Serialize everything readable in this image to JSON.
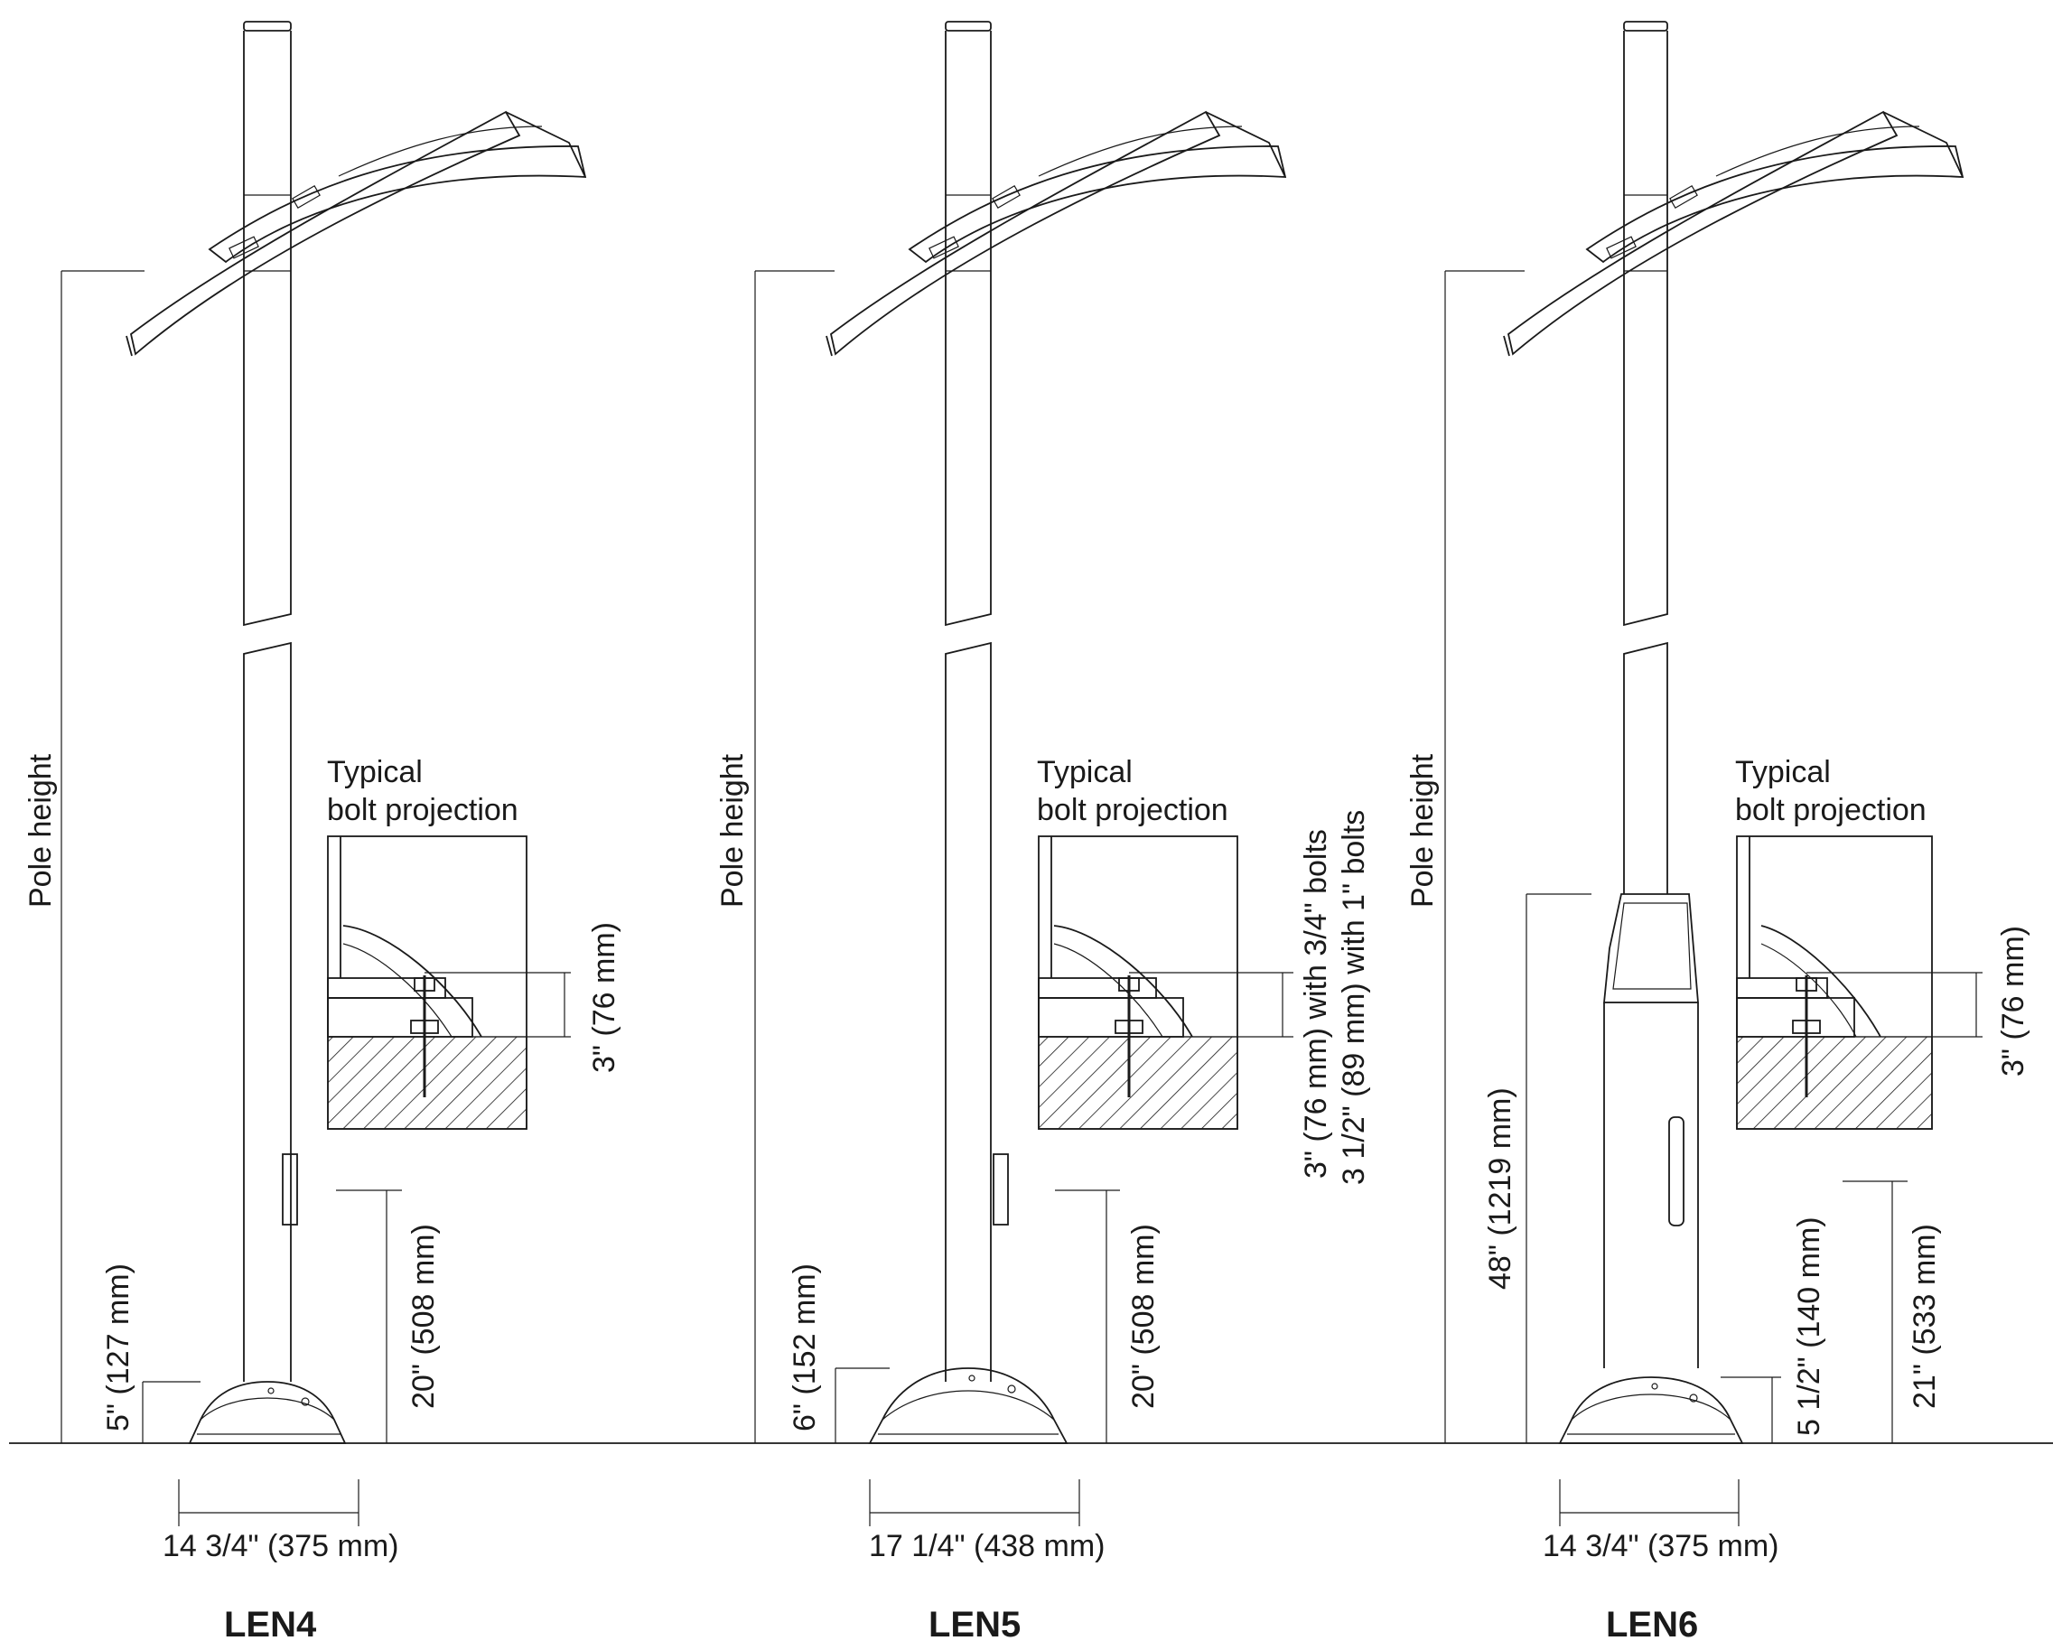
{
  "models": [
    {
      "name": "LEN4",
      "pole_height_label": "Pole height",
      "bolt_title_1": "Typical",
      "bolt_title_2": "bolt projection",
      "bolt_dim_1": "3\" (76 mm)",
      "bolt_dim_2": "",
      "door_height": "20\" (508 mm)",
      "base_height": "5\" (127 mm)",
      "base_width": "14 3/4\" (375 mm)"
    },
    {
      "name": "LEN5",
      "pole_height_label": "Pole height",
      "bolt_title_1": "Typical",
      "bolt_title_2": "bolt projection",
      "bolt_dim_1": "3\" (76 mm) with 3/4\" bolts",
      "bolt_dim_2": "3 1/2\" (89 mm) with 1\" bolts",
      "door_height": "20\" (508 mm)",
      "base_height": "6\" (152 mm)",
      "base_width": "17 1/4\" (438 mm)"
    },
    {
      "name": "LEN6",
      "pole_height_label": "Pole height",
      "bolt_title_1": "Typical",
      "bolt_title_2": "bolt projection",
      "bolt_dim_1": "3\" (76 mm)",
      "bolt_dim_2": "",
      "door_height": "21\" (533 mm)",
      "base_height": "5 1/2\" (140 mm)",
      "base_width": "14 3/4\" (375 mm)",
      "shroud_height": "48\" (1219 mm)"
    }
  ]
}
